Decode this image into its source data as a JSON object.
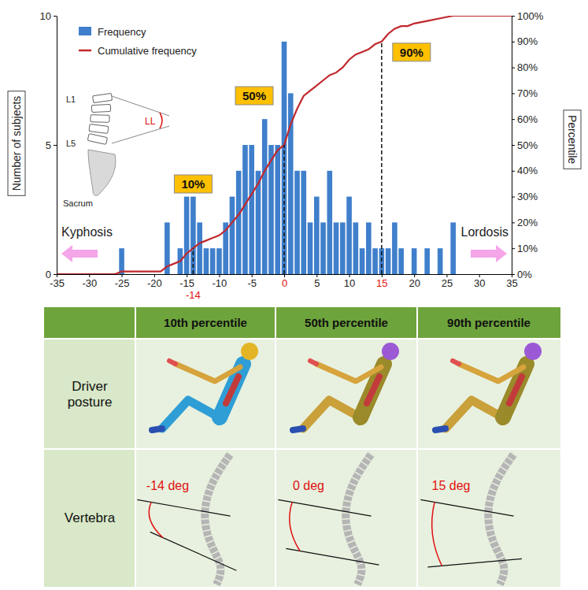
{
  "chart_data": {
    "type": "bar",
    "y_label": "Number of subjects",
    "y2_label": "Percentile",
    "legend": "top-left",
    "grid": false,
    "xlim": [
      -35,
      35
    ],
    "xticks": [
      -35,
      -30,
      -25,
      -20,
      -15,
      -10,
      -5,
      0,
      5,
      10,
      15,
      20,
      25,
      30,
      35
    ],
    "ylim": [
      0,
      10
    ],
    "yticks": [
      0,
      5,
      10
    ],
    "y2lim": [
      0,
      100
    ],
    "y2ticks": [
      {
        "value": 0,
        "label": "0%"
      },
      {
        "value": 10,
        "label": "10%"
      },
      {
        "value": 20,
        "label": "20%"
      },
      {
        "value": 30,
        "label": "30%"
      },
      {
        "value": 40,
        "label": "40%"
      },
      {
        "value": 50,
        "label": "50%"
      },
      {
        "value": 60,
        "label": "60%"
      },
      {
        "value": 70,
        "label": "70%"
      },
      {
        "value": 80,
        "label": "80%"
      },
      {
        "value": 90,
        "label": "90%"
      },
      {
        "value": 100,
        "label": "100%"
      }
    ],
    "series": [
      {
        "name": "Frequency",
        "type": "bar",
        "color": "#3f7fcb",
        "x": [
          -25,
          -18,
          -16,
          -15,
          -14,
          -13,
          -12,
          -11,
          -10,
          -9,
          -8,
          -7,
          -6,
          -5,
          -4,
          -3,
          -2,
          -1,
          0,
          1,
          2,
          3,
          4,
          5,
          6,
          7,
          8,
          9,
          10,
          11,
          12,
          13,
          14,
          15,
          16,
          17,
          18,
          20,
          22,
          24,
          26
        ],
        "values": [
          1,
          2,
          1,
          3,
          3,
          2,
          1,
          1,
          1,
          2,
          3,
          4,
          5,
          5,
          4,
          6,
          5,
          5,
          9,
          7,
          4,
          4,
          2,
          3,
          2,
          4,
          2,
          2,
          3,
          2,
          1,
          2,
          1,
          1,
          1,
          2,
          1,
          1,
          1,
          1,
          2
        ]
      },
      {
        "name": "Cumulative frequency",
        "type": "line",
        "color": "#c0282d",
        "axis": "y2",
        "x": [
          -35,
          -26,
          -25,
          -19,
          -18,
          -17,
          -16,
          -15,
          -14,
          -13,
          -12,
          -11,
          -10,
          -9,
          -8,
          -7,
          -6,
          -5,
          -4,
          -3,
          -2,
          -1,
          0,
          1,
          2,
          3,
          4,
          5,
          6,
          7,
          8,
          9,
          10,
          11,
          12,
          13,
          14,
          15,
          16,
          17,
          18,
          19,
          20,
          22,
          24,
          26,
          35
        ],
        "values": [
          0,
          0,
          1,
          1,
          3,
          4,
          5,
          8,
          10,
          12,
          13,
          14,
          15,
          17,
          20,
          23,
          27,
          31,
          35,
          40,
          44,
          48,
          50,
          58,
          64,
          69,
          71,
          73,
          75,
          77,
          78,
          80,
          83,
          85,
          86,
          87,
          89,
          90,
          93,
          95,
          96,
          96,
          97,
          98,
          99,
          100,
          100
        ]
      }
    ],
    "percentile_lines": [
      {
        "x": -14,
        "percentile": 10,
        "label": "10%"
      },
      {
        "x": 0,
        "percentile": 50,
        "label": "50%"
      },
      {
        "x": 15,
        "percentile": 90,
        "label": "90%"
      }
    ],
    "directions": {
      "left": "Kyphosis",
      "right": "Lordosis"
    },
    "inset_labels": {
      "top": "L1",
      "bottom": "L5",
      "angle": "LL",
      "base": "Sacrum"
    }
  },
  "table": {
    "columns": [
      "10th percentile",
      "50th percentile",
      "90th percentile"
    ],
    "rows": [
      {
        "label": "Driver posture"
      },
      {
        "label": "Vertebra",
        "angles": [
          {
            "value": -14,
            "label": "-14 deg"
          },
          {
            "value": 0,
            "label": "0 deg"
          },
          {
            "value": 15,
            "label": "15 deg"
          }
        ]
      }
    ]
  }
}
